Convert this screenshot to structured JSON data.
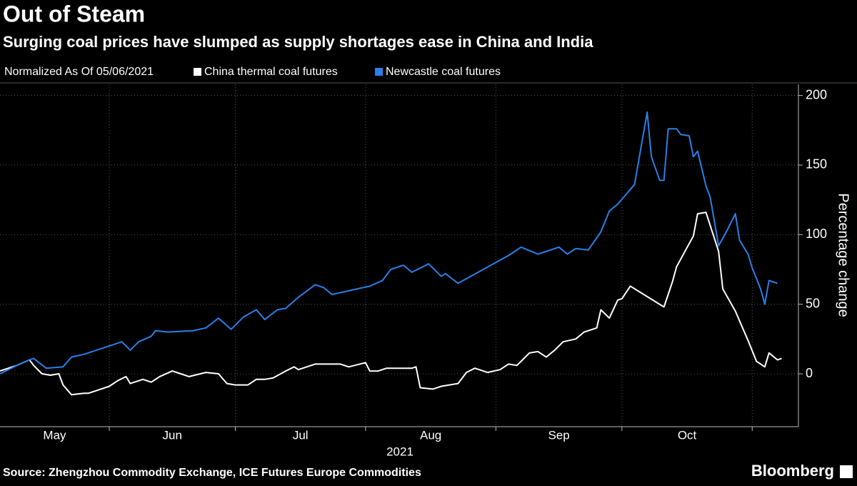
{
  "chart_data": {
    "type": "line",
    "title": "Out of Steam",
    "subtitle": "Surging coal prices have slumped as supply shortages ease in China and India",
    "legend_title": "Normalized As Of 05/06/2021",
    "ylabel": "Percentage change",
    "xlabel": "2021",
    "source": "Source: Zhengzhou Commodity Exchange, ICE Futures Europe Commodities",
    "brand": "Bloomberg",
    "xlim": [
      "2021-05-06",
      "2021-11-12"
    ],
    "xticks": [
      {
        "value": "2021-05",
        "label": "May"
      },
      {
        "value": "2021-06",
        "label": "Jun"
      },
      {
        "value": "2021-07",
        "label": "Jul"
      },
      {
        "value": "2021-08",
        "label": "Aug"
      },
      {
        "value": "2021-09",
        "label": "Sep"
      },
      {
        "value": "2021-10",
        "label": "Oct"
      }
    ],
    "ylim": [
      -38,
      208
    ],
    "yticks": [
      0,
      50,
      100,
      150,
      200
    ],
    "grid": true,
    "series": [
      {
        "name": "China thermal coal futures",
        "color": "#ffffff",
        "x": [
          "2021-05-06",
          "2021-05-08",
          "2021-05-10",
          "2021-05-13",
          "2021-05-14",
          "2021-05-16",
          "2021-05-18",
          "2021-05-20",
          "2021-05-21",
          "2021-05-23",
          "2021-05-26",
          "2021-05-27",
          "2021-05-29",
          "2021-06-01",
          "2021-06-03",
          "2021-06-05",
          "2021-06-06",
          "2021-06-09",
          "2021-06-11",
          "2021-06-13",
          "2021-06-16",
          "2021-06-18",
          "2021-06-20",
          "2021-06-24",
          "2021-06-27",
          "2021-06-29",
          "2021-07-01",
          "2021-07-04",
          "2021-07-06",
          "2021-07-08",
          "2021-07-10",
          "2021-07-13",
          "2021-07-15",
          "2021-07-16",
          "2021-07-20",
          "2021-07-23",
          "2021-07-26",
          "2021-07-28",
          "2021-08-01",
          "2021-08-02",
          "2021-08-04",
          "2021-08-06",
          "2021-08-09",
          "2021-08-12",
          "2021-08-13",
          "2021-08-14",
          "2021-08-17",
          "2021-08-19",
          "2021-08-23",
          "2021-08-25",
          "2021-08-27",
          "2021-08-30",
          "2021-09-02",
          "2021-09-04",
          "2021-09-06",
          "2021-09-09",
          "2021-09-11",
          "2021-09-13",
          "2021-09-15",
          "2021-09-17",
          "2021-09-20",
          "2021-09-22",
          "2021-09-25",
          "2021-09-26",
          "2021-09-28",
          "2021-09-30",
          "2021-10-01",
          "2021-10-03",
          "2021-10-11",
          "2021-10-13",
          "2021-10-14",
          "2021-10-16",
          "2021-10-18",
          "2021-10-19",
          "2021-10-21",
          "2021-10-24",
          "2021-10-25",
          "2021-10-28",
          "2021-10-31",
          "2021-11-02",
          "2021-11-04",
          "2021-11-05",
          "2021-11-07",
          "2021-11-08"
        ],
        "values": [
          2,
          4,
          6,
          10,
          6,
          0,
          -1,
          0,
          -8,
          -15,
          -14,
          -14,
          -12,
          -9,
          -5,
          -2,
          -7,
          -4,
          -6,
          -2,
          2,
          0,
          -2,
          1,
          0,
          -7,
          -8,
          -8,
          -4,
          -4,
          -3,
          2,
          5,
          3,
          7,
          7,
          7,
          5,
          8,
          2,
          2,
          4,
          4,
          4,
          5,
          -10,
          -11,
          -9,
          -7,
          1,
          4,
          1,
          3,
          7,
          6,
          15,
          16,
          12,
          17,
          23,
          25,
          30,
          33,
          46,
          40,
          53,
          54,
          63,
          48,
          66,
          77,
          88,
          99,
          115,
          116,
          88,
          61,
          45,
          24,
          9,
          5,
          15,
          10,
          11
        ]
      },
      {
        "name": "Newcastle coal futures",
        "color": "#2b7fe8",
        "x": [
          "2021-05-06",
          "2021-05-08",
          "2021-05-10",
          "2021-05-13",
          "2021-05-14",
          "2021-05-17",
          "2021-05-21",
          "2021-05-23",
          "2021-05-26",
          "2021-06-04",
          "2021-06-06",
          "2021-06-08",
          "2021-06-11",
          "2021-06-12",
          "2021-06-15",
          "2021-06-21",
          "2021-06-24",
          "2021-06-27",
          "2021-06-30",
          "2021-07-03",
          "2021-07-06",
          "2021-07-08",
          "2021-07-11",
          "2021-07-13",
          "2021-07-16",
          "2021-07-20",
          "2021-07-22",
          "2021-07-24",
          "2021-08-02",
          "2021-08-05",
          "2021-08-07",
          "2021-08-10",
          "2021-08-12",
          "2021-08-16",
          "2021-08-19",
          "2021-08-20",
          "2021-08-23",
          "2021-09-04",
          "2021-09-07",
          "2021-09-11",
          "2021-09-16",
          "2021-09-18",
          "2021-09-20",
          "2021-09-23",
          "2021-09-26",
          "2021-09-28",
          "2021-09-30",
          "2021-10-04",
          "2021-10-07",
          "2021-10-08",
          "2021-10-10",
          "2021-10-11",
          "2021-10-12",
          "2021-10-14",
          "2021-10-15",
          "2021-10-17",
          "2021-10-18",
          "2021-10-19",
          "2021-10-21",
          "2021-10-22",
          "2021-10-24",
          "2021-10-26",
          "2021-10-28",
          "2021-10-29",
          "2021-10-31",
          "2021-11-01",
          "2021-11-03",
          "2021-11-04",
          "2021-11-05",
          "2021-11-07"
        ],
        "values": [
          0,
          3,
          6,
          10,
          11,
          4,
          5,
          12,
          14,
          23,
          17,
          23,
          27,
          31,
          30,
          31,
          33,
          40,
          32,
          41,
          46,
          39,
          46,
          47,
          55,
          64,
          62,
          57,
          63,
          67,
          75,
          78,
          73,
          79,
          70,
          72,
          65,
          85,
          91,
          86,
          91,
          86,
          90,
          89,
          102,
          117,
          122,
          136,
          188,
          156,
          139,
          139,
          176,
          176,
          172,
          171,
          156,
          160,
          135,
          127,
          92,
          103,
          115,
          96,
          86,
          76,
          61,
          50,
          67,
          65
        ]
      }
    ]
  }
}
